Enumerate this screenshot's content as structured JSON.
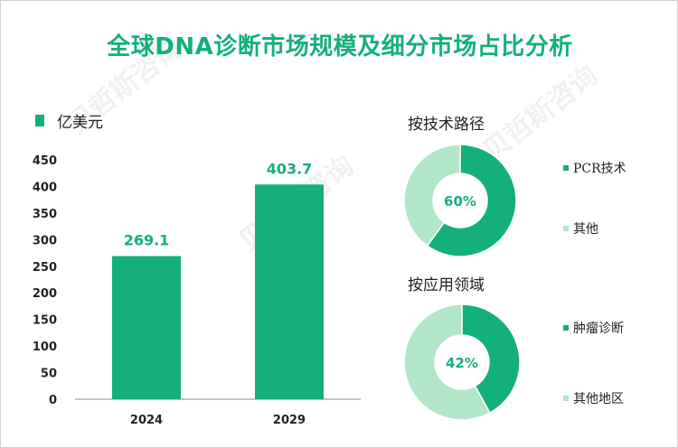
{
  "title": "全球DNA诊断市场规模及细分市场占比分析",
  "legend_label": "亿美元",
  "colors": {
    "primary": "#14b07a",
    "light": "#b2e6c9",
    "axis": "#888888"
  },
  "chart_data": [
    {
      "type": "bar",
      "categories": [
        "2024",
        "2029"
      ],
      "values": [
        269.1,
        403.7
      ],
      "value_labels": [
        "269.1",
        "403.7"
      ],
      "yticks": [
        "0",
        "50",
        "100",
        "150",
        "200",
        "250",
        "300",
        "350",
        "400",
        "450"
      ],
      "ylim": [
        0,
        450
      ],
      "legend": "亿美元"
    },
    {
      "type": "pie",
      "title": "按技术路径",
      "labels": [
        "PCR技术",
        "其他"
      ],
      "values": [
        60,
        40
      ],
      "center_label": "60%"
    },
    {
      "type": "pie",
      "title": "按应用领域",
      "labels": [
        "肿瘤诊断",
        "其他地区"
      ],
      "values": [
        42,
        58
      ],
      "center_label": "42%"
    }
  ]
}
